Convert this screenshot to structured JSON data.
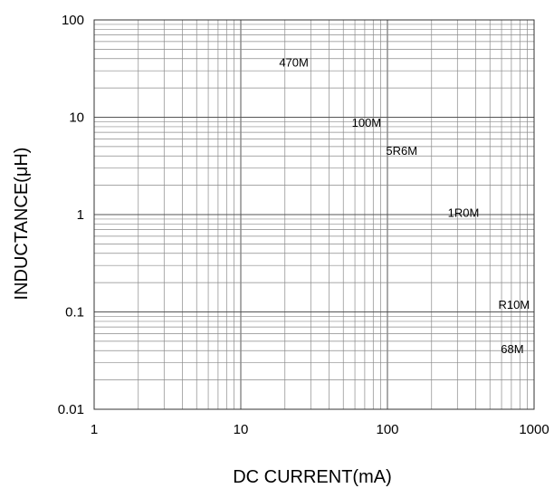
{
  "chart_data": {
    "type": "scatter",
    "title": "",
    "xlabel": "DC CURRENT(mA)",
    "ylabel": "INDUCTANCE(μH)",
    "xscale": "log",
    "yscale": "log",
    "xlim": [
      1,
      1000
    ],
    "ylim": [
      0.01,
      100
    ],
    "grid": true,
    "x_ticks": [
      "1",
      "10",
      "100",
      "1000"
    ],
    "y_ticks": [
      "100",
      "10",
      "1",
      "0.1",
      "0.01"
    ],
    "annotations": [
      {
        "text": "470M",
        "x": 23,
        "y": 37
      },
      {
        "text": "100M",
        "x": 72,
        "y": 8.9
      },
      {
        "text": "5R6M",
        "x": 125,
        "y": 4.6
      },
      {
        "text": "1R0M",
        "x": 330,
        "y": 1.05
      },
      {
        "text": "R10M",
        "x": 730,
        "y": 0.12
      },
      {
        "text": "68M",
        "x": 710,
        "y": 0.042
      }
    ]
  }
}
